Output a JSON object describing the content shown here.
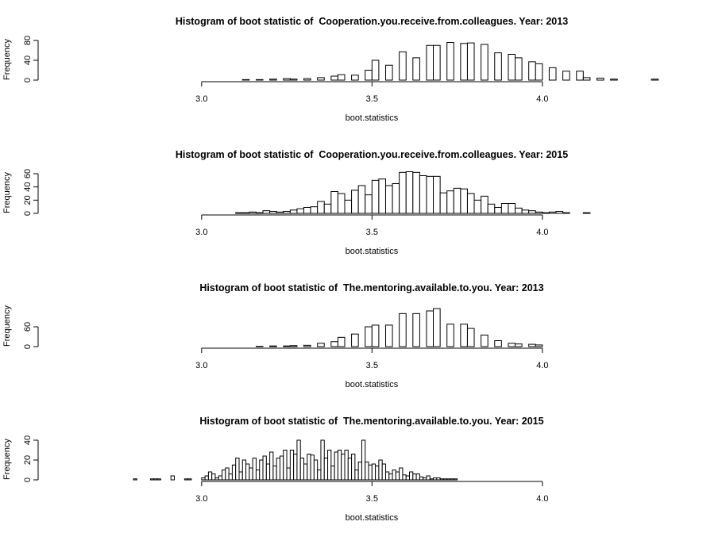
{
  "chart_data": [
    {
      "type": "histogram",
      "title": "Histogram of boot statistic of  Cooperation.you.receive.from.colleagues. Year: 2013",
      "xlabel": "boot.statistics",
      "ylabel": "Frequency",
      "bins": [
        3.12,
        3.14,
        3.16,
        3.18,
        3.2,
        3.22,
        3.24,
        3.26,
        3.28,
        3.3,
        3.32,
        3.34,
        3.36,
        3.38,
        3.4,
        3.42,
        3.44,
        3.46,
        3.48,
        3.5,
        3.52,
        3.54,
        3.56,
        3.58,
        3.6,
        3.62,
        3.64,
        3.66,
        3.68,
        3.7,
        3.72,
        3.74,
        3.76,
        3.78,
        3.8,
        3.82,
        3.84,
        3.86,
        3.88,
        3.9,
        3.92,
        3.94,
        3.96,
        3.98,
        4,
        4.02,
        4.04,
        4.06,
        4.08,
        4.1,
        4.12,
        4.14,
        4.16,
        4.18,
        4.2,
        4.22,
        4.24,
        4.26,
        4.28,
        4.3,
        4.32,
        4.34
      ],
      "values": [
        1,
        0,
        1,
        0,
        2,
        0,
        3,
        2,
        0,
        3,
        0,
        5,
        0,
        8,
        11,
        0,
        10,
        0,
        20,
        40,
        0,
        30,
        0,
        57,
        0,
        45,
        0,
        70,
        70,
        0,
        76,
        0,
        74,
        75,
        0,
        72,
        0,
        55,
        0,
        52,
        45,
        0,
        37,
        33,
        0,
        25,
        0,
        18,
        0,
        18,
        5,
        0,
        4,
        0,
        2,
        0,
        0,
        0,
        0,
        0,
        2
      ],
      "color": "#ffffff",
      "xlim": [
        2.8,
        4.35
      ],
      "xticks": [
        {
          "value": 3,
          "label": "3.0"
        },
        {
          "value": 3.5,
          "label": "3.5"
        },
        {
          "value": 4,
          "label": "4.0"
        }
      ],
      "ylim": [
        0,
        80
      ],
      "yticks": [
        0,
        40,
        80
      ]
    },
    {
      "type": "histogram",
      "title": "Histogram of boot statistic of  Cooperation.you.receive.from.colleagues. Year: 2015",
      "xlabel": "boot.statistics",
      "ylabel": "Frequency",
      "bins": [
        3.1,
        3.12,
        3.14,
        3.16,
        3.18,
        3.2,
        3.22,
        3.24,
        3.26,
        3.28,
        3.3,
        3.32,
        3.34,
        3.36,
        3.38,
        3.4,
        3.42,
        3.44,
        3.46,
        3.48,
        3.5,
        3.52,
        3.54,
        3.56,
        3.58,
        3.6,
        3.62,
        3.64,
        3.66,
        3.68,
        3.7,
        3.72,
        3.74,
        3.76,
        3.78,
        3.8,
        3.82,
        3.84,
        3.86,
        3.88,
        3.9,
        3.92,
        3.94,
        3.96,
        3.98,
        4,
        4.02,
        4.04,
        4.06,
        4.08,
        4.1,
        4.12,
        4.14
      ],
      "values": [
        1,
        1,
        2,
        1,
        4,
        3,
        2,
        3,
        5,
        7,
        9,
        10,
        18,
        14,
        33,
        30,
        20,
        35,
        42,
        28,
        50,
        52,
        42,
        45,
        62,
        63,
        62,
        57,
        56,
        56,
        31,
        34,
        38,
        37,
        30,
        20,
        26,
        14,
        9,
        15,
        15,
        8,
        5,
        4,
        2,
        1,
        2,
        3,
        1,
        0,
        0,
        1
      ],
      "color": "#ffffff",
      "xlim": [
        2.8,
        4.35
      ],
      "xticks": [
        {
          "value": 3,
          "label": "3.0"
        },
        {
          "value": 3.5,
          "label": "3.5"
        },
        {
          "value": 4,
          "label": "4.0"
        }
      ],
      "ylim": [
        0,
        60
      ],
      "yticks": [
        0,
        20,
        40,
        60
      ]
    },
    {
      "type": "histogram",
      "title": "Histogram of boot statistic of  The.mentoring.available.to.you. Year: 2013",
      "xlabel": "boot.statistics",
      "ylabel": "Frequency",
      "bins": [
        3.16,
        3.18,
        3.2,
        3.22,
        3.24,
        3.26,
        3.28,
        3.3,
        3.32,
        3.34,
        3.36,
        3.38,
        3.4,
        3.42,
        3.44,
        3.46,
        3.48,
        3.5,
        3.52,
        3.54,
        3.56,
        3.58,
        3.6,
        3.62,
        3.64,
        3.66,
        3.68,
        3.7,
        3.72,
        3.74,
        3.76,
        3.78,
        3.8,
        3.82,
        3.84,
        3.86,
        3.88,
        3.9,
        3.92,
        3.94,
        3.96,
        3.98,
        4,
        4.02
      ],
      "values": [
        1,
        0,
        2,
        0,
        2,
        3,
        0,
        4,
        0,
        10,
        0,
        15,
        28,
        0,
        38,
        0,
        60,
        65,
        0,
        65,
        0,
        100,
        0,
        100,
        0,
        108,
        115,
        0,
        68,
        0,
        68,
        55,
        0,
        35,
        0,
        18,
        0,
        10,
        8,
        0,
        7,
        5,
        0
      ],
      "color": "#ffffff",
      "xlim": [
        2.8,
        4.35
      ],
      "xticks": [
        {
          "value": 3,
          "label": "3.0"
        },
        {
          "value": 3.5,
          "label": "3.5"
        },
        {
          "value": 4,
          "label": "4.0"
        }
      ],
      "ylim": [
        0,
        120
      ],
      "yticks": [
        0,
        60
      ]
    },
    {
      "type": "histogram",
      "title": "Histogram of boot statistic of  The.mentoring.available.to.you. Year: 2015",
      "xlabel": "boot.statistics",
      "ylabel": "Frequency",
      "bins": [
        2.8,
        2.81,
        2.82,
        2.83,
        2.84,
        2.85,
        2.86,
        2.87,
        2.88,
        2.89,
        2.9,
        2.91,
        2.92,
        2.93,
        2.94,
        2.95,
        2.96,
        2.97,
        2.98,
        2.99,
        3,
        3.01,
        3.02,
        3.03,
        3.04,
        3.05,
        3.06,
        3.07,
        3.08,
        3.09,
        3.1,
        3.11,
        3.12,
        3.13,
        3.14,
        3.15,
        3.16,
        3.17,
        3.18,
        3.19,
        3.2,
        3.21,
        3.22,
        3.23,
        3.24,
        3.25,
        3.26,
        3.27,
        3.28,
        3.29,
        3.3,
        3.31,
        3.32,
        3.33,
        3.34,
        3.35,
        3.36,
        3.37,
        3.38,
        3.39,
        3.4,
        3.41,
        3.42,
        3.43,
        3.44,
        3.45,
        3.46,
        3.47,
        3.48,
        3.49,
        3.5,
        3.51,
        3.52,
        3.53,
        3.54,
        3.55,
        3.56,
        3.57,
        3.58,
        3.59,
        3.6,
        3.61,
        3.62,
        3.63,
        3.64,
        3.65,
        3.66,
        3.67,
        3.68,
        3.69,
        3.7,
        3.71,
        3.72,
        3.73,
        3.74,
        3.75,
        3.76,
        3.77,
        3.78,
        3.79,
        3.8
      ],
      "values": [
        1,
        0,
        0,
        0,
        0,
        1,
        1,
        1,
        0,
        0,
        0,
        4,
        0,
        0,
        0,
        1,
        1,
        0,
        0,
        0,
        2,
        4,
        8,
        6,
        2,
        4,
        10,
        12,
        6,
        15,
        22,
        8,
        20,
        16,
        12,
        22,
        10,
        20,
        24,
        16,
        28,
        14,
        22,
        24,
        30,
        12,
        30,
        26,
        40,
        22,
        16,
        26,
        25,
        20,
        10,
        40,
        22,
        30,
        14,
        28,
        30,
        26,
        30,
        22,
        26,
        10,
        18,
        40,
        18,
        15,
        16,
        14,
        20,
        16,
        8,
        6,
        10,
        8,
        12,
        5,
        4,
        8,
        6,
        6,
        3,
        2,
        4,
        1,
        2,
        2,
        1,
        1,
        1,
        1,
        1,
        0,
        0,
        0,
        0,
        0
      ],
      "color": "#ffffff",
      "xlim": [
        2.8,
        4.35
      ],
      "xticks": [
        {
          "value": 3,
          "label": "3.0"
        },
        {
          "value": 3.5,
          "label": "3.5"
        },
        {
          "value": 4,
          "label": "4.0"
        }
      ],
      "ylim": [
        0,
        40
      ],
      "yticks": [
        0,
        20,
        40
      ]
    }
  ]
}
